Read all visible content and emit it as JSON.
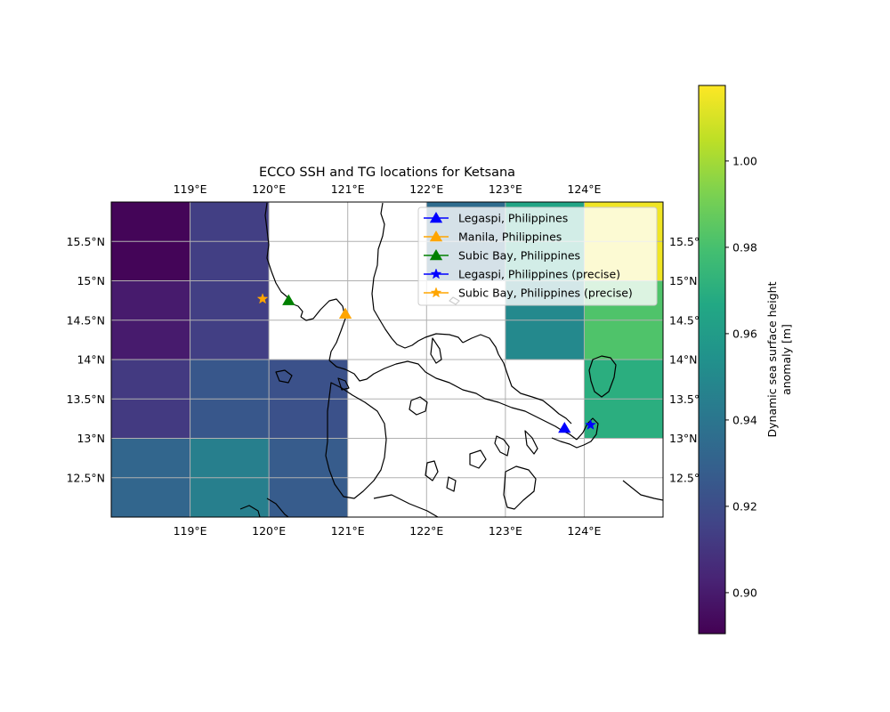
{
  "title": "ECCO SSH and TG locations for Ketsana",
  "lon_ticks": [
    "119°E",
    "120°E",
    "121°E",
    "122°E",
    "123°E",
    "124°E"
  ],
  "lat_ticks": [
    "15.5°N",
    "15°N",
    "14.5°N",
    "14°N",
    "13.5°N",
    "13°N",
    "12.5°N"
  ],
  "colorbar": {
    "label_line1": "Dynamic sea surface height",
    "label_line2": "anomaly [m]",
    "ticks": [
      "0.90",
      "0.92",
      "0.94",
      "0.96",
      "0.98",
      "1.00"
    ],
    "range": [
      0.8905,
      1.0175
    ]
  },
  "legend": [
    {
      "label": "Legaspi, Philippines",
      "color": "#0000ff",
      "marker": "triangle"
    },
    {
      "label": "Manila, Philippines",
      "color": "#ffa500",
      "marker": "triangle"
    },
    {
      "label": "Subic Bay, Philippines",
      "color": "#008000",
      "marker": "triangle"
    },
    {
      "label": "Legaspi, Philippines (precise)",
      "color": "#0000ff",
      "marker": "star"
    },
    {
      "label": "Subic Bay, Philippines (precise)",
      "color": "#ffa500",
      "marker": "star"
    }
  ],
  "chart_data": {
    "type": "heatmap",
    "title": "ECCO SSH and TG locations for Ketsana",
    "colorbar_label": "Dynamic sea surface height anomaly [m]",
    "xlim": [
      118,
      125
    ],
    "ylim": [
      12,
      16
    ],
    "x_tick_values": [
      119,
      120,
      121,
      122,
      123,
      124
    ],
    "y_tick_values": [
      15.5,
      15,
      14.5,
      14,
      13.5,
      13,
      12.5
    ],
    "cells": [
      {
        "lon": [
          118,
          119
        ],
        "lat": [
          15,
          16
        ],
        "value": 0.892
      },
      {
        "lon": [
          119,
          120
        ],
        "lat": [
          15,
          16
        ],
        "value": 0.914
      },
      {
        "lon": [
          122,
          123
        ],
        "lat": [
          15,
          16
        ],
        "value": 0.935
      },
      {
        "lon": [
          123,
          124
        ],
        "lat": [
          15,
          16
        ],
        "value": 0.965
      },
      {
        "lon": [
          124,
          125
        ],
        "lat": [
          15,
          16
        ],
        "value": 1.015
      },
      {
        "lon": [
          118,
          119
        ],
        "lat": [
          14,
          15
        ],
        "value": 0.9
      },
      {
        "lon": [
          119,
          120
        ],
        "lat": [
          14,
          15
        ],
        "value": 0.914
      },
      {
        "lon": [
          123,
          124
        ],
        "lat": [
          14,
          15
        ],
        "value": 0.95
      },
      {
        "lon": [
          124,
          125
        ],
        "lat": [
          14,
          15
        ],
        "value": 0.982
      },
      {
        "lon": [
          118,
          119
        ],
        "lat": [
          13,
          14
        ],
        "value": 0.912
      },
      {
        "lon": [
          119,
          120
        ],
        "lat": [
          13,
          14
        ],
        "value": 0.925
      },
      {
        "lon": [
          120,
          121
        ],
        "lat": [
          13,
          14
        ],
        "value": 0.922
      },
      {
        "lon": [
          124,
          125
        ],
        "lat": [
          13,
          14
        ],
        "value": 0.97
      },
      {
        "lon": [
          118,
          119
        ],
        "lat": [
          12,
          13
        ],
        "value": 0.932
      },
      {
        "lon": [
          119,
          120
        ],
        "lat": [
          12,
          13
        ],
        "value": 0.945
      },
      {
        "lon": [
          120,
          121
        ],
        "lat": [
          12,
          13
        ],
        "value": 0.927
      }
    ],
    "markers": [
      {
        "name": "Legaspi, Philippines",
        "lon": 123.75,
        "lat": 13.13,
        "marker": "triangle",
        "color": "#0000ff"
      },
      {
        "name": "Manila, Philippines",
        "lon": 120.97,
        "lat": 14.58,
        "marker": "triangle",
        "color": "#ffa500"
      },
      {
        "name": "Subic Bay, Philippines",
        "lon": 120.25,
        "lat": 14.75,
        "marker": "triangle",
        "color": "#008000"
      },
      {
        "name": "Legaspi, Philippines (precise)",
        "lon": 124.08,
        "lat": 13.17,
        "marker": "star",
        "color": "#0000ff"
      },
      {
        "name": "Subic Bay, Philippines (precise)",
        "lon": 119.92,
        "lat": 14.77,
        "marker": "star",
        "color": "#ffa500"
      }
    ],
    "grid": true,
    "legend_position": "top-right"
  }
}
